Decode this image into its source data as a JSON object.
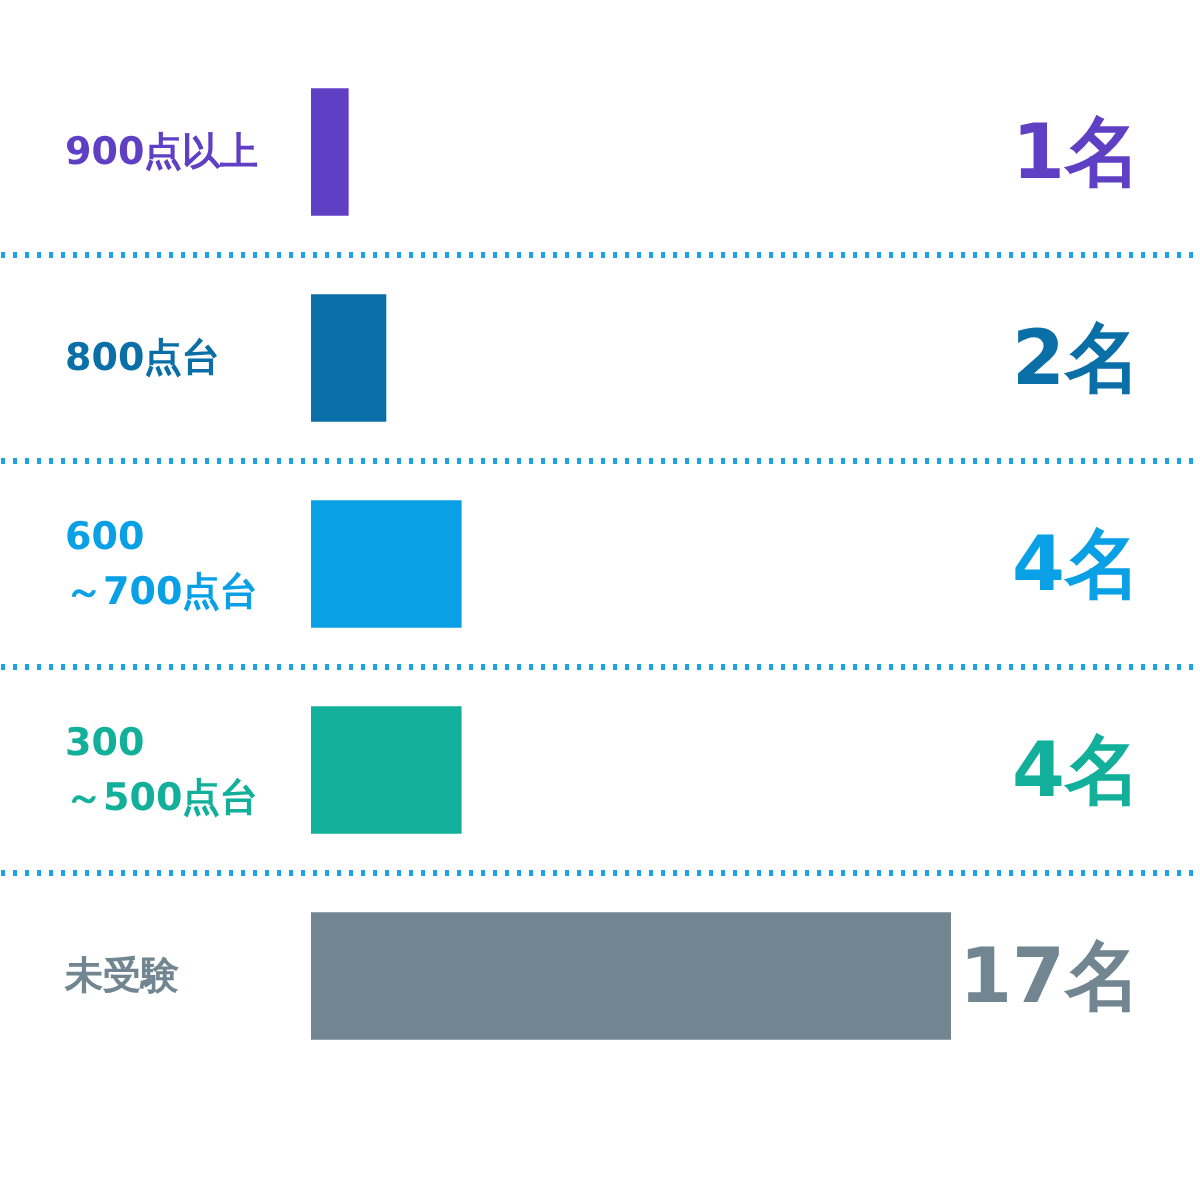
{
  "chart_data": {
    "type": "bar",
    "orientation": "horizontal",
    "categories": [
      "900点以上",
      "800点台",
      "600\n～700点台",
      "300\n～500点台",
      "未受験"
    ],
    "values": [
      1,
      2,
      4,
      4,
      17
    ],
    "colors": [
      "#5f3fc4",
      "#0a6fa6",
      "#0aa0e6",
      "#12b09a",
      "#718690"
    ],
    "value_labels": [
      "1名",
      "2名",
      "4名",
      "4名",
      "17名"
    ],
    "xlim": [
      0,
      17
    ],
    "tick_labels": "y",
    "grid": "y"
  }
}
